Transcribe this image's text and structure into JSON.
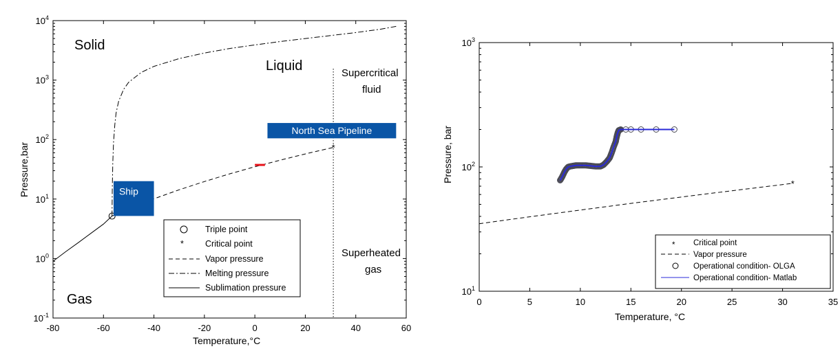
{
  "chart_data": [
    {
      "type": "line",
      "title": "",
      "xlabel": "Temperature,°C",
      "ylabel": "Pressure,bar",
      "xlim": [
        -80,
        60
      ],
      "ylim": [
        0.1,
        10000
      ],
      "yscale": "log",
      "xticks": [
        "-80",
        "-60",
        "-40",
        "-20",
        "0",
        "20",
        "40",
        "60"
      ],
      "yticks": [
        "10-1",
        "100",
        "101",
        "102",
        "103",
        "104"
      ],
      "regions": [
        "Solid",
        "Liquid",
        "Gas",
        "Supercritical",
        "fluid",
        "Superheated",
        "gas"
      ],
      "boxes": {
        "ship": "Ship",
        "pipeline": "North Sea Pipeline"
      },
      "legend": [
        "Triple point",
        "Critical point",
        "Vapor pressure",
        "Melting pressure",
        "Sublimation pressure"
      ],
      "points": {
        "triple": {
          "x": -56.6,
          "y": 5.18
        },
        "critical": {
          "x": 31.1,
          "y": 73.8
        }
      },
      "critical_isotherm_x": 31.1,
      "series": [
        {
          "name": "Vapor pressure",
          "x": [
            -56.6,
            -50,
            -40,
            -30,
            -20,
            -10,
            0,
            10,
            20,
            31.1
          ],
          "y": [
            5.18,
            6.8,
            10.1,
            14.3,
            19.7,
            26.5,
            34.9,
            45.0,
            57.3,
            73.8
          ]
        },
        {
          "name": "Melting pressure",
          "x": [
            -56.6,
            -56.5,
            -56.3,
            -56,
            -55.5,
            -55,
            -54,
            -52,
            -50,
            -45,
            -40,
            -30,
            -20,
            -10,
            0,
            10,
            20,
            30,
            40,
            50,
            56
          ],
          "y": [
            5.18,
            15,
            40,
            90,
            180,
            280,
            440,
            700,
            920,
            1350,
            1700,
            2300,
            2850,
            3400,
            3900,
            4450,
            5000,
            5600,
            6300,
            7200,
            8000
          ]
        },
        {
          "name": "Sublimation pressure",
          "x": [
            -80,
            -75,
            -70,
            -65,
            -60,
            -56.6
          ],
          "y": [
            0.9,
            1.3,
            1.85,
            2.65,
            3.8,
            5.18
          ]
        }
      ],
      "shaded": {
        "ship": {
          "xmin": -56,
          "xmax": -40,
          "ymin": 5.2,
          "ymax": 20
        },
        "pipeline": {
          "xmin": 5,
          "xmax": 56,
          "ymin": 105,
          "ymax": 190
        },
        "red_mark": {
          "x1": 0,
          "x2": 4,
          "y": 37
        }
      }
    },
    {
      "type": "line",
      "title": "",
      "xlabel": "Temperature, °C",
      "ylabel": "Pressure, bar",
      "xlim": [
        0,
        35
      ],
      "ylim": [
        10,
        1000
      ],
      "yscale": "log",
      "xticks": [
        "0",
        "5",
        "10",
        "15",
        "20",
        "25",
        "30",
        "35"
      ],
      "yticks": [
        "101",
        "102",
        "103"
      ],
      "legend": [
        "Critical point",
        "Vapor pressure",
        "Operational condition- OLGA",
        "Operational condition- Matlab"
      ],
      "critical_point": {
        "x": 31,
        "y": 73.8
      },
      "series": [
        {
          "name": "Vapor pressure",
          "x": [
            0,
            5,
            10,
            15,
            20,
            25,
            31
          ],
          "y": [
            34.9,
            39.7,
            45.0,
            50.9,
            57.3,
            64.3,
            73.8
          ]
        },
        {
          "name": "Operational condition- OLGA",
          "x": [
            8.0,
            8.2,
            8.4,
            8.6,
            8.8,
            9.0,
            9.3,
            9.6,
            10.0,
            10.5,
            11.0,
            11.5,
            12.0,
            12.3,
            12.6,
            12.9,
            13.1,
            13.3,
            13.5,
            13.6,
            13.7,
            13.8,
            14.0,
            14.5,
            15.0,
            16.0,
            17.5,
            19.3
          ],
          "y": [
            78,
            83,
            90,
            96,
            100,
            101,
            102,
            103,
            103,
            103,
            102,
            101,
            101,
            104,
            110,
            118,
            130,
            145,
            160,
            175,
            188,
            197,
            200,
            200,
            200,
            200,
            200,
            200
          ]
        },
        {
          "name": "Operational condition- Matlab",
          "x": [
            8.0,
            8.2,
            8.4,
            8.6,
            8.8,
            9.0,
            9.3,
            9.6,
            10.0,
            10.5,
            11.0,
            11.5,
            12.0,
            12.3,
            12.6,
            12.9,
            13.1,
            13.3,
            13.5,
            13.6,
            13.7,
            13.8,
            14.0,
            14.5,
            15.0,
            16.0,
            17.5,
            19.3
          ],
          "y": [
            78,
            83,
            90,
            96,
            100,
            101,
            102,
            103,
            103,
            103,
            102,
            101,
            101,
            104,
            110,
            118,
            130,
            145,
            160,
            175,
            188,
            197,
            200,
            200,
            200,
            200,
            200,
            200
          ]
        }
      ]
    }
  ],
  "colors": {
    "box_fill": "#0a55a6",
    "red_mark": "#e8141c",
    "matlab_line": "#2a2ad8",
    "olga_marker": "#4a4a55"
  }
}
